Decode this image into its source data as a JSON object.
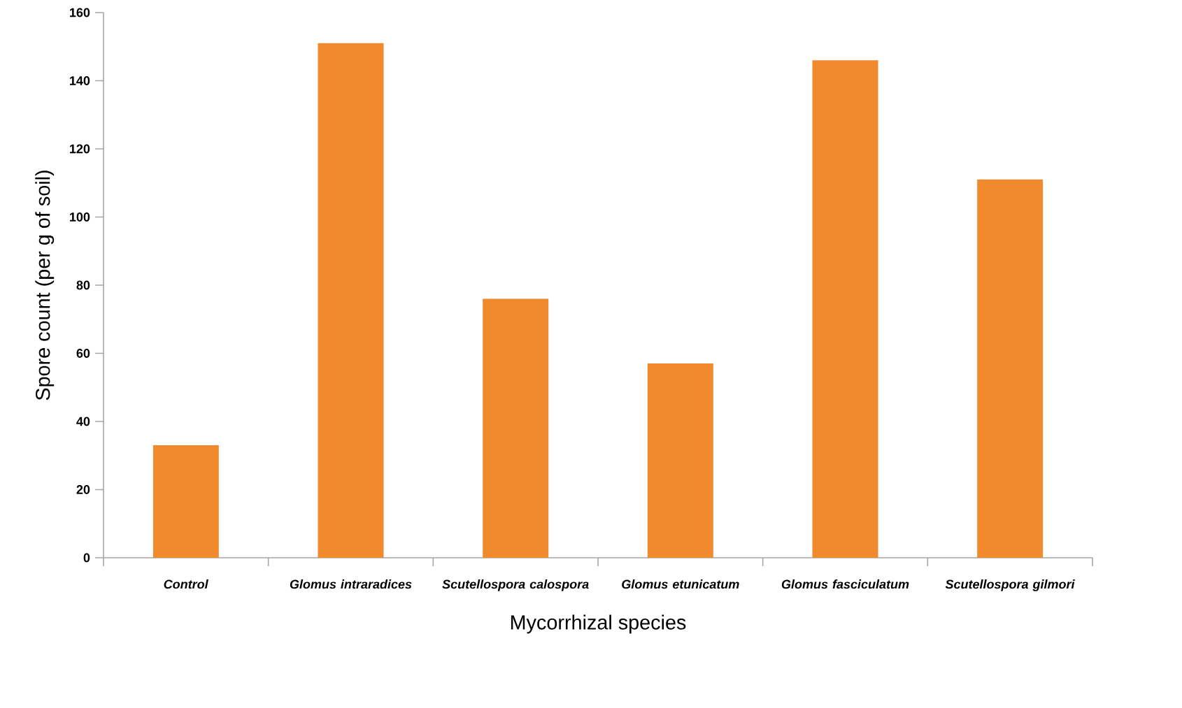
{
  "chart_data": {
    "type": "bar",
    "xlabel": "Mycorrhizal species",
    "ylabel": "Spore count (per g of soil)",
    "categories": [
      "*Control*",
      "*Glomus intraradices*",
      "*Scutellospora calospora*",
      "*Glomus etunicatum*",
      "*Glomus fasciculatum*",
      "*Scutellospora gilmori*"
    ],
    "values": [
      33,
      151,
      76,
      57,
      146,
      111
    ],
    "color": "#f08a2c",
    "ylim": [
      0,
      160
    ],
    "yticks": [
      0,
      20,
      40,
      60,
      80,
      100,
      120,
      140,
      160
    ],
    "grid": false
  }
}
